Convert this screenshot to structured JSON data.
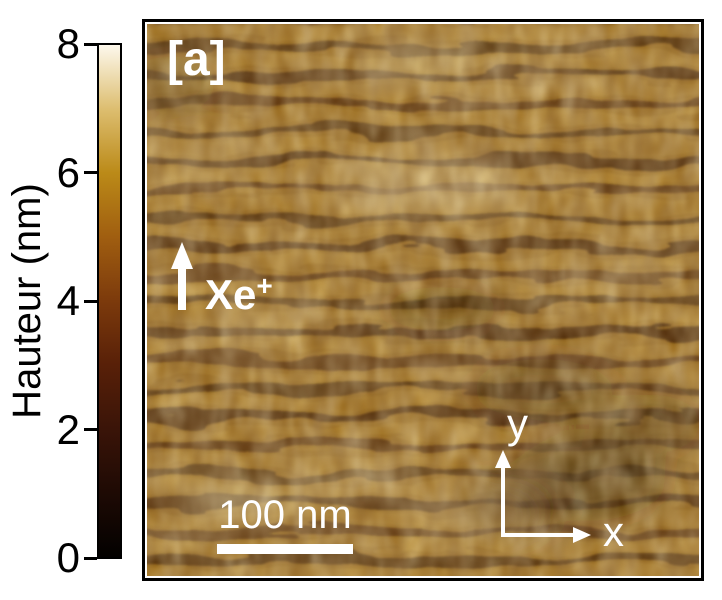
{
  "figure": {
    "panel_label": "[a]",
    "colorbar": {
      "axis_label": "Hauteur (nm)",
      "tick_labels": [
        "8",
        "6",
        "4",
        "2",
        "0"
      ],
      "range_min": 0,
      "range_max": 8,
      "unit": "nm",
      "gradient_stops": [
        "#030100",
        "#1e0a04",
        "#3a1408",
        "#582008",
        "#7c3a0c",
        "#a05e10",
        "#bb8a18",
        "#ddbe70",
        "#fdf8ec"
      ]
    },
    "image": {
      "ion_beam_label": "Xe",
      "ion_beam_charge": "+",
      "scale_bar_label": "100 nm",
      "axis_x_label": "x",
      "axis_y_label": "y",
      "annotation_color": "#ffffff",
      "base_color": "#9c6d1d",
      "ridge_color": "#c09434",
      "trough_color": "#401d06"
    }
  }
}
